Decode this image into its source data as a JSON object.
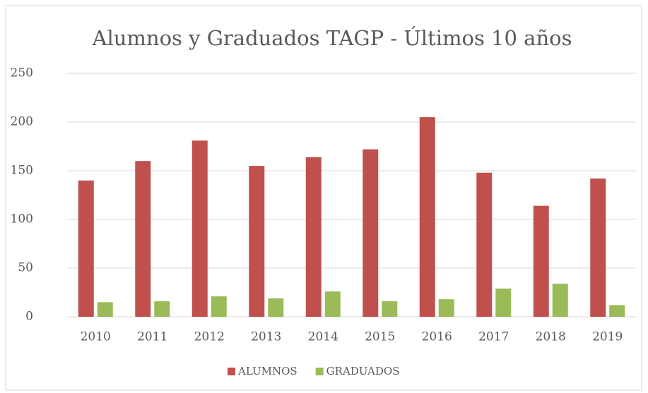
{
  "chart_data": {
    "type": "bar",
    "title": "Alumnos y Graduados TAGP - Últimos 10 años",
    "categories": [
      "2010",
      "2011",
      "2012",
      "2013",
      "2014",
      "2015",
      "2016",
      "2017",
      "2018",
      "2019"
    ],
    "series": [
      {
        "name": "ALUMNOS",
        "color": "#c0504d",
        "values": [
          140,
          160,
          181,
          155,
          164,
          172,
          205,
          148,
          114,
          142
        ]
      },
      {
        "name": "GRADUADOS",
        "color": "#9bbb59",
        "values": [
          15,
          16,
          21,
          19,
          26,
          16,
          18,
          29,
          34,
          12
        ]
      }
    ],
    "ylim": [
      0,
      250
    ],
    "yticks": [
      0,
      50,
      100,
      150,
      200,
      250
    ],
    "grid": true,
    "legend": "bottom"
  }
}
